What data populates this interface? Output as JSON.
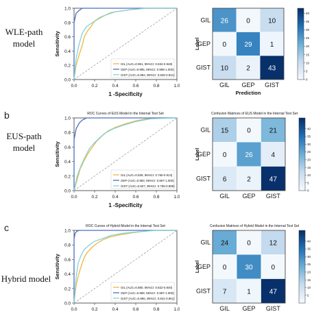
{
  "rows": [
    {
      "letter": "",
      "row_label_lines": [
        "WLE-path",
        "model"
      ]
    },
    {
      "letter": "b",
      "row_label_lines": [
        "EUS-path",
        "model"
      ]
    },
    {
      "letter": "c",
      "row_label_lines": [
        "Hybrid model"
      ]
    }
  ],
  "colors": {
    "GIL": "#f0b63c",
    "GEP": "#4a6ebf",
    "GIST": "#7fd3dc",
    "diagonal": "#9aa0a6",
    "heat_low": "#f3f8fd",
    "heat_high": "#08306b"
  },
  "chart_data": [
    {
      "type": "line",
      "title": "",
      "xlabel": "1 -Specificity",
      "ylabel": "Sensitivity",
      "xlim": [
        0,
        1
      ],
      "ylim": [
        0,
        1
      ],
      "xticks": [
        "0.0",
        "0.2",
        "0.4",
        "0.6",
        "0.8",
        "1.0"
      ],
      "yticks": [
        "0.0",
        "0.2",
        "0.4",
        "0.6",
        "0.8",
        "1.0"
      ],
      "legend_position": "bottom-right",
      "series": [
        {
          "name": "GIL (AUC=0.891, 95%CI: 0.834-0.948)",
          "x": [
            0,
            0.02,
            0.05,
            0.08,
            0.1,
            0.13,
            0.17,
            0.2,
            0.25,
            0.3,
            0.36,
            0.45,
            0.55,
            0.7,
            1.0
          ],
          "y": [
            0,
            0.2,
            0.35,
            0.48,
            0.6,
            0.68,
            0.75,
            0.82,
            0.87,
            0.9,
            0.94,
            0.96,
            0.98,
            1.0,
            1.0
          ]
        },
        {
          "name": "GEP (AUC=0.995, 95%CI: 0.989-1.000)",
          "x": [
            0,
            0.0,
            0.02,
            0.05,
            0.08,
            0.15,
            1.0
          ],
          "y": [
            0,
            0.8,
            0.93,
            0.97,
            1.0,
            1.0,
            1.0
          ]
        },
        {
          "name": "GIST (AUC=0.884, 95%CI: 0.826-0.941)",
          "x": [
            0,
            0.02,
            0.05,
            0.08,
            0.12,
            0.18,
            0.25,
            0.3,
            0.4,
            0.55,
            0.7,
            1.0
          ],
          "y": [
            0,
            0.3,
            0.5,
            0.65,
            0.74,
            0.8,
            0.86,
            0.9,
            0.95,
            0.98,
            1.0,
            1.0
          ]
        }
      ]
    },
    {
      "type": "heatmap",
      "title": "",
      "xlabel": "Prediction",
      "ylabel": "Label",
      "categories": [
        "GIL",
        "GEP",
        "GIST"
      ],
      "matrix": [
        [
          26,
          0,
          10
        ],
        [
          0,
          29,
          1
        ],
        [
          10,
          2,
          43
        ]
      ],
      "colorbar_ticks": [
        "40",
        "35",
        "30",
        "25",
        "20",
        "15",
        "10",
        "5",
        "0"
      ],
      "vmax": 43
    },
    {
      "type": "line",
      "title": "ROC Curves of EUS Model in the Internal Test Set",
      "xlabel": "1 -Specificity",
      "ylabel": "Sensitivity",
      "xlim": [
        0,
        1
      ],
      "ylim": [
        0,
        1
      ],
      "xticks": [
        "0.0",
        "0.2",
        "0.4",
        "0.6",
        "0.8",
        "1.0"
      ],
      "yticks": [
        "0.0",
        "0.2",
        "0.4",
        "0.6",
        "0.8",
        "1.0"
      ],
      "legend_position": "bottom-right",
      "series": [
        {
          "name": "GIL (AUC=0.839, 95%CI: 0.765-0.913)",
          "x": [
            0,
            0.03,
            0.06,
            0.1,
            0.14,
            0.18,
            0.22,
            0.27,
            0.33,
            0.4,
            0.5,
            0.6,
            0.75,
            1.0
          ],
          "y": [
            0,
            0.15,
            0.3,
            0.42,
            0.52,
            0.6,
            0.68,
            0.75,
            0.82,
            0.87,
            0.92,
            0.96,
            1.0,
            1.0
          ]
        },
        {
          "name": "GEP (AUC=0.983, 95%CI: 0.967-1.000)",
          "x": [
            0,
            0.0,
            0.02,
            0.05,
            0.08,
            0.12,
            0.2,
            1.0
          ],
          "y": [
            0,
            0.7,
            0.85,
            0.93,
            0.97,
            1.0,
            1.0,
            1.0
          ]
        },
        {
          "name": "GIST (AUC=0.827, 95%CI: 0.755-0.899)",
          "x": [
            0,
            0.03,
            0.07,
            0.11,
            0.15,
            0.2,
            0.25,
            0.3,
            0.38,
            0.48,
            0.6,
            0.75,
            1.0
          ],
          "y": [
            0,
            0.2,
            0.35,
            0.47,
            0.58,
            0.66,
            0.73,
            0.79,
            0.85,
            0.9,
            0.95,
            0.99,
            1.0
          ]
        }
      ]
    },
    {
      "type": "heatmap",
      "title": "Confusion Matrices of EUS Model in the Internal Test Set",
      "xlabel": "",
      "ylabel": "Label",
      "categories": [
        "GIL",
        "GEP",
        "GIST"
      ],
      "matrix": [
        [
          15,
          0,
          21
        ],
        [
          0,
          26,
          4
        ],
        [
          6,
          2,
          47
        ]
      ],
      "colorbar_ticks": [
        "40",
        "35",
        "30",
        "25",
        "20",
        "15",
        "10",
        "5",
        "0"
      ],
      "vmax": 47
    },
    {
      "type": "line",
      "title": "ROC Curves of Hybrid Model in the Internal Test Set",
      "xlabel": "",
      "ylabel": "Sensitivity",
      "xlim": [
        0,
        1
      ],
      "ylim": [
        0,
        1
      ],
      "xticks": [
        "0.0",
        "0.2",
        "0.4",
        "0.6",
        "0.8",
        "1.0"
      ],
      "yticks": [
        "0.0",
        "0.2",
        "0.4",
        "0.6",
        "0.8",
        "1.0"
      ],
      "legend_position": "bottom-right",
      "series": [
        {
          "name": "GIL (AUC=0.880, 95%CI: 0.822-0.940)",
          "x": [
            0,
            0.02,
            0.05,
            0.08,
            0.1,
            0.13,
            0.17,
            0.22,
            0.28,
            0.35,
            0.45,
            0.58,
            0.75,
            1.0
          ],
          "y": [
            0,
            0.25,
            0.42,
            0.55,
            0.63,
            0.7,
            0.76,
            0.82,
            0.87,
            0.91,
            0.94,
            0.97,
            1.0,
            1.0
          ]
        },
        {
          "name": "GEP (AUC=0.999, 95%CI: 0.997-1.000)",
          "x": [
            0,
            0.0,
            0.01,
            0.03,
            0.05,
            1.0
          ],
          "y": [
            0,
            0.88,
            0.96,
            0.99,
            1.0,
            1.0
          ]
        },
        {
          "name": "GIST (AUC=0.896, 95%CI: 0.841-0.951)",
          "x": [
            0,
            0.02,
            0.04,
            0.07,
            0.1,
            0.15,
            0.2,
            0.28,
            0.36,
            0.48,
            0.62,
            0.8,
            1.0
          ],
          "y": [
            0,
            0.35,
            0.55,
            0.66,
            0.74,
            0.8,
            0.85,
            0.89,
            0.93,
            0.96,
            0.98,
            1.0,
            1.0
          ]
        }
      ]
    },
    {
      "type": "heatmap",
      "title": "Confusion Matrices of Hybrid Model in the Internal Test Set",
      "xlabel": "",
      "ylabel": "Label",
      "categories": [
        "GIL",
        "GEP",
        "GIST"
      ],
      "matrix": [
        [
          24,
          0,
          12
        ],
        [
          0,
          30,
          0
        ],
        [
          7,
          1,
          47
        ]
      ],
      "colorbar_ticks": [
        "40",
        "35",
        "30",
        "25",
        "20",
        "15",
        "10",
        "5"
      ],
      "vmax": 47
    }
  ]
}
